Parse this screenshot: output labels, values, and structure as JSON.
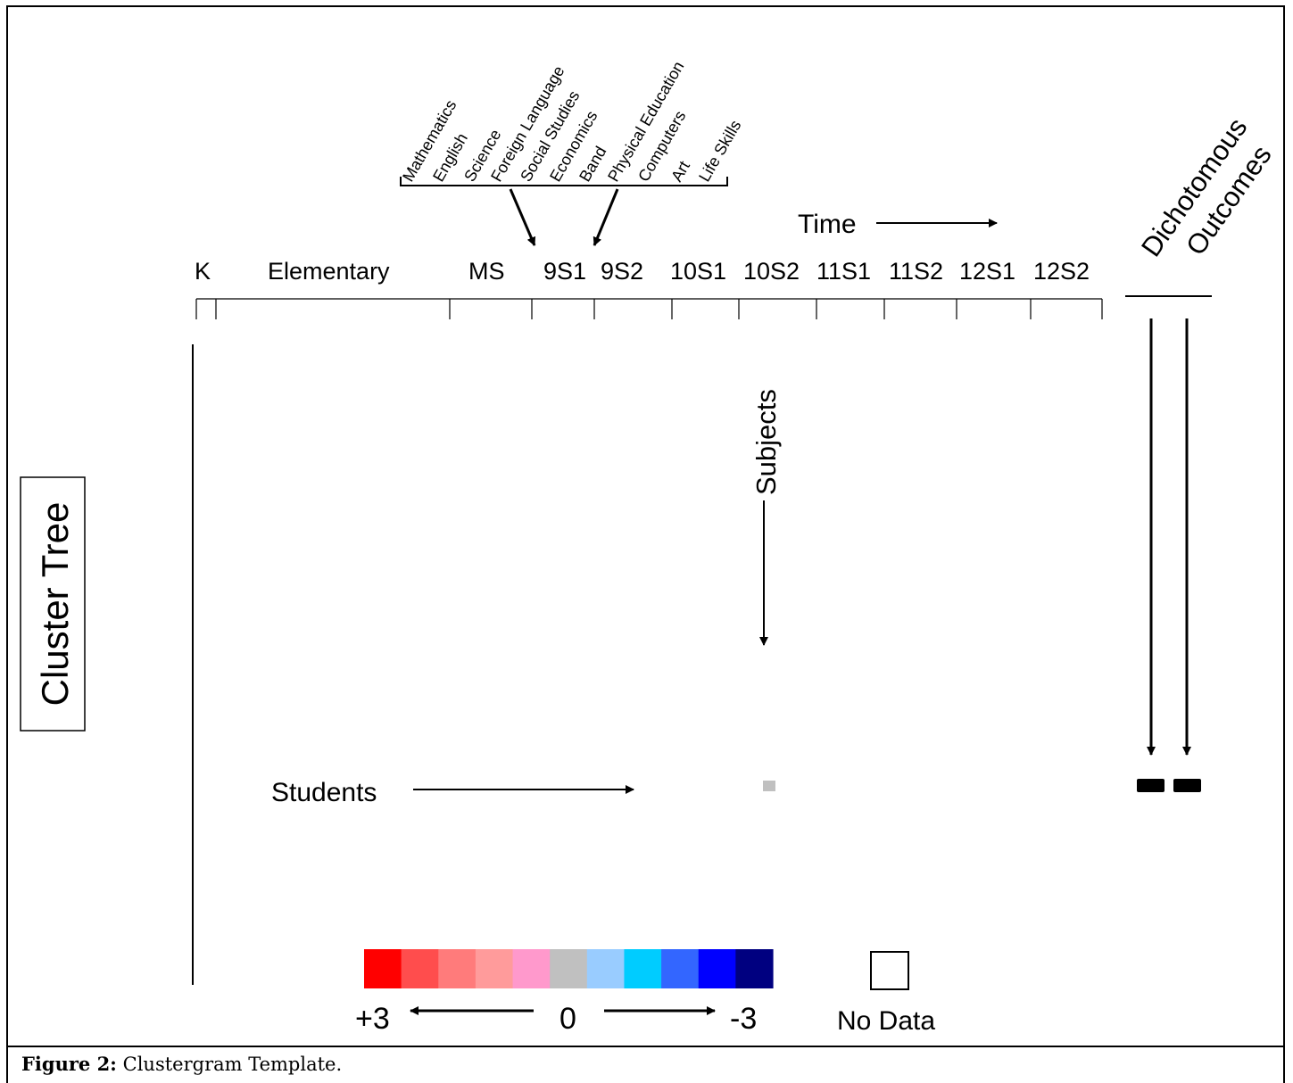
{
  "subjects": [
    "Mathematics",
    "English",
    "Science",
    "Foreign Language",
    "Social Studies",
    "Economics",
    "Band",
    "Physical Education",
    "Computers",
    "Art",
    "Life Skills"
  ],
  "time_label": "Time",
  "periods": [
    "K",
    "Elementary",
    "MS",
    "9S1",
    "9S2",
    "10S1",
    "10S2",
    "11S1",
    "11S2",
    "12S1",
    "12S2"
  ],
  "outcomes_line1": "Dichotomous",
  "outcomes_line2": "Outcomes",
  "cluster_tree_label": "Cluster Tree",
  "subjects_label": "Subjects",
  "students_label": "Students",
  "legend": {
    "colors": [
      "#ff0000",
      "#ff4d4d",
      "#ff7b7b",
      "#ff9b9b",
      "#ff99cc",
      "#c0c0c0",
      "#99ccff",
      "#00ccff",
      "#3366ff",
      "#0000ff",
      "#000080"
    ],
    "plus_label": "+3",
    "zero_label": "0",
    "minus_label": "-3",
    "no_data_label": "No Data"
  },
  "sample_cell_color": "#c0c0c0",
  "outcome_marker_color": "#000000",
  "caption": {
    "bold": "Figure 2:",
    "text": " Clustergram Template."
  }
}
